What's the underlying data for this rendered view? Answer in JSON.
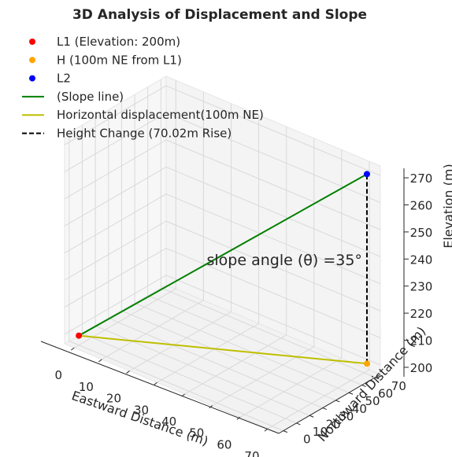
{
  "chart_data": {
    "type": "line3d",
    "title": "3D Analysis of Displacement and Slope",
    "xlabel": "Eastward Distance (m)",
    "ylabel": "Northward Distance (m)",
    "zlabel": "Elevation (m)",
    "xlim": [
      -3.5,
      74
    ],
    "ylim": [
      -3.5,
      74
    ],
    "zlim": [
      196.5,
      273.5
    ],
    "xticks": [
      0,
      10,
      20,
      30,
      40,
      50,
      60,
      70
    ],
    "yticks": [
      0,
      10,
      20,
      30,
      40,
      50,
      60,
      70
    ],
    "zticks": [
      200,
      210,
      220,
      230,
      240,
      250,
      260,
      270
    ],
    "grid": true,
    "legend_position": "top-left",
    "points": [
      {
        "name": "L1 (Elevation: 200m)",
        "x": 0,
        "y": 0,
        "z": 200,
        "color": "#ff0000"
      },
      {
        "name": "H (100m NE from L1)",
        "x": 70.71,
        "y": 70.71,
        "z": 200,
        "color": "#ffa500"
      },
      {
        "name": "L2",
        "x": 70.71,
        "y": 70.71,
        "z": 270.02,
        "color": "#0000ff"
      }
    ],
    "lines": [
      {
        "name": "(Slope line)",
        "from": [
          0,
          0,
          200
        ],
        "to": [
          70.71,
          70.71,
          270.02
        ],
        "color": "#008000",
        "style": "solid"
      },
      {
        "name": "Horizontal displacement(100m NE)",
        "from": [
          0,
          0,
          200
        ],
        "to": [
          70.71,
          70.71,
          200
        ],
        "color": "#bfbf00",
        "style": "solid"
      },
      {
        "name": "Height Change (70.02m Rise)",
        "from": [
          70.71,
          70.71,
          200
        ],
        "to": [
          70.71,
          70.71,
          270.02
        ],
        "color": "#000000",
        "style": "dashed"
      }
    ],
    "annotation": {
      "text": "slope angle (θ) =35°",
      "x": 35,
      "y": 35,
      "z": 235
    }
  }
}
